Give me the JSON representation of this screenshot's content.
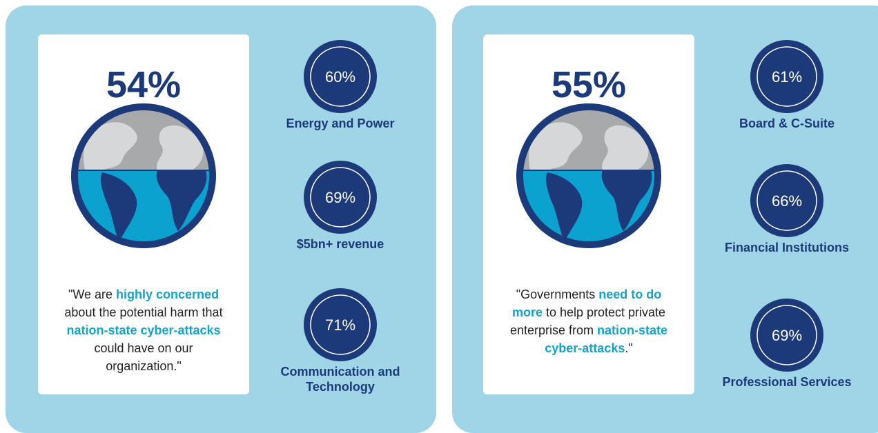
{
  "panels": [
    {
      "headline": "54%",
      "quote": [
        {
          "text": "\"We are ",
          "highlight": false
        },
        {
          "text": "highly concerned",
          "highlight": true
        },
        {
          "text": " about the potential harm that ",
          "highlight": false
        },
        {
          "text": "nation-state cyber-attacks",
          "highlight": true
        },
        {
          "text": " could have on our organization.\"",
          "highlight": false
        }
      ],
      "stats": [
        {
          "value": "60%",
          "label": "Energy and Power"
        },
        {
          "value": "69%",
          "label": "$5bn+ revenue"
        },
        {
          "value": "71%",
          "label": "Communication and Technology"
        }
      ]
    },
    {
      "headline": "55%",
      "quote": [
        {
          "text": "\"Governments ",
          "highlight": false
        },
        {
          "text": "need to do more",
          "highlight": true
        },
        {
          "text": " to help protect private enterprise from ",
          "highlight": false
        },
        {
          "text": "nation-state cyber-attacks",
          "highlight": true
        },
        {
          "text": ".\"",
          "highlight": false
        }
      ],
      "stats": [
        {
          "value": "61%",
          "label": "Board & C-Suite"
        },
        {
          "value": "66%",
          "label": "Financial Institutions"
        },
        {
          "value": "69%",
          "label": "Professional Services"
        }
      ]
    }
  ]
}
